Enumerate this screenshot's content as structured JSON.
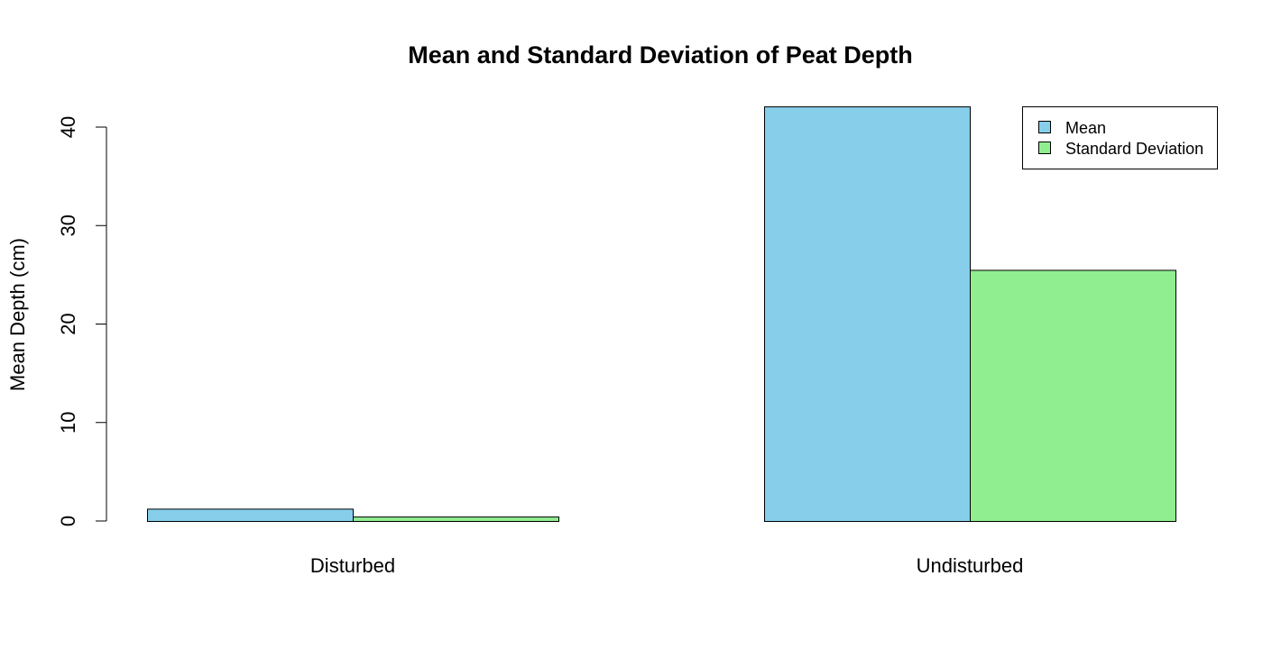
{
  "chart_data": {
    "type": "bar",
    "title": "Mean and Standard Deviation of Peat Depth",
    "xlabel": "",
    "ylabel": "Mean Depth (cm)",
    "categories": [
      "Disturbed",
      "Undisturbed"
    ],
    "series": [
      {
        "name": "Mean",
        "color": "#87CEEB",
        "values": [
          1.25,
          42.1
        ]
      },
      {
        "name": "Standard Deviation",
        "color": "#90EE90",
        "values": [
          0.45,
          25.5
        ]
      }
    ],
    "ylim": [
      0,
      42.1
    ],
    "yticks": [
      0,
      10,
      20,
      30,
      40
    ],
    "grid": false,
    "legend_position": "top-right",
    "barmode": "grouped"
  }
}
